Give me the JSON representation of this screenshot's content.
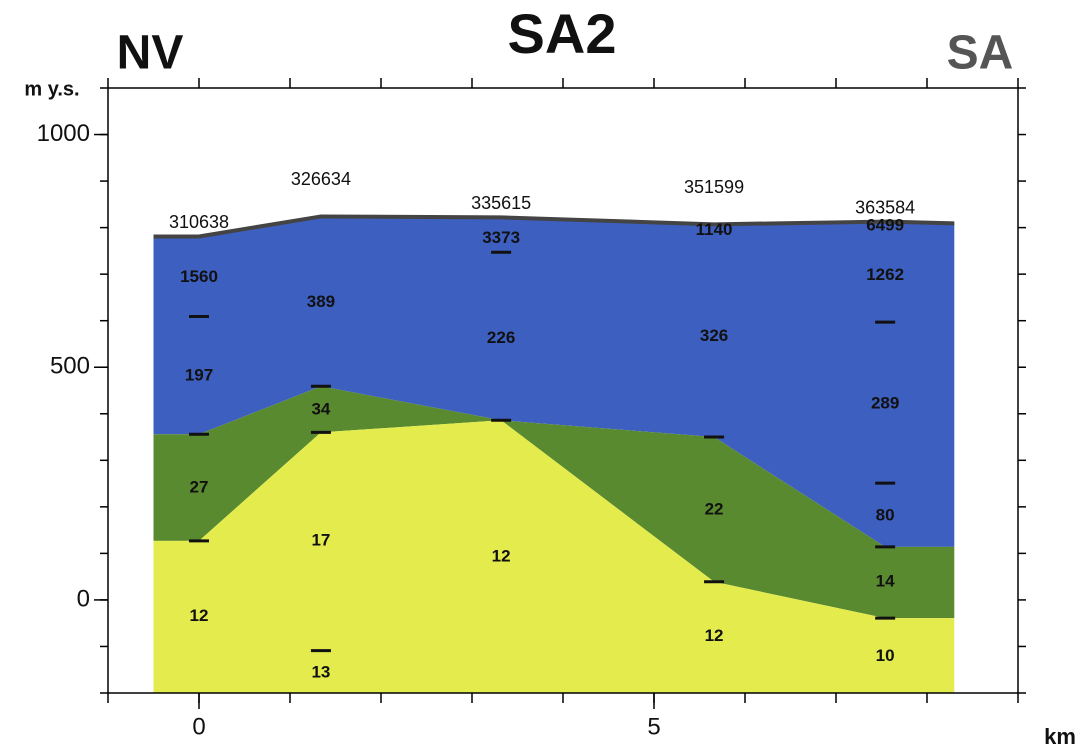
{
  "chart_data": {
    "type": "section",
    "title": "SA2",
    "left_label": "NV",
    "right_label": "SA",
    "ylabel": "m y.s.",
    "xlabel": "km",
    "xlim": [
      -1,
      9
    ],
    "ylim": [
      -200,
      1100
    ],
    "xticks": [
      0,
      5
    ],
    "yticks": [
      0,
      500,
      1000
    ],
    "xminorticks": [
      -1,
      0,
      1,
      2,
      3,
      4,
      5,
      6,
      7,
      8,
      9
    ],
    "yminorticks": [
      -200,
      -100,
      0,
      100,
      200,
      300,
      400,
      500,
      600,
      700,
      800,
      900,
      1000,
      1100
    ],
    "x": [
      -0.5,
      0,
      1.34,
      3.32,
      5.66,
      7.54,
      8.3
    ],
    "boundaries": [
      [
        781,
        781,
        824,
        822,
        807,
        813,
        809
      ],
      [
        356,
        356,
        459,
        386,
        350,
        114,
        114
      ],
      [
        127,
        127,
        360,
        386,
        39,
        -39,
        -39
      ]
    ],
    "layer_colors": [
      "#3d5fbf",
      "#5a8a2f",
      "#e3ec4c"
    ],
    "surface_color": "#444444",
    "boreholes": [
      {
        "x": 0,
        "label": "310638",
        "values": [
          "1560",
          "197",
          "27",
          "12"
        ],
        "value_elevations": [
          693,
          481,
          240,
          -36
        ],
        "markers": [
          609,
          356,
          127
        ]
      },
      {
        "x": 1.34,
        "label": "326634",
        "values": [
          "389",
          "34",
          "17",
          "13"
        ],
        "value_elevations": [
          639,
          408,
          127,
          -157
        ],
        "markers": [
          459,
          360,
          -109
        ]
      },
      {
        "x": 3.32,
        "label": "335615",
        "values": [
          "3373",
          "226",
          "12"
        ],
        "value_elevations": [
          777,
          562,
          92
        ],
        "markers": [
          747,
          386
        ]
      },
      {
        "x": 5.66,
        "label": "351599",
        "values": [
          "1140",
          "326",
          "22",
          "12"
        ],
        "value_elevations": [
          794,
          566,
          193,
          -79
        ],
        "markers": [
          350,
          39
        ]
      },
      {
        "x": 7.54,
        "label": "363584",
        "values": [
          "6499",
          "1262",
          "289",
          "80",
          "14",
          "10"
        ],
        "value_elevations": [
          803,
          697,
          421,
          180,
          39,
          -122
        ],
        "markers": [
          597,
          251,
          114,
          -39
        ]
      }
    ]
  }
}
